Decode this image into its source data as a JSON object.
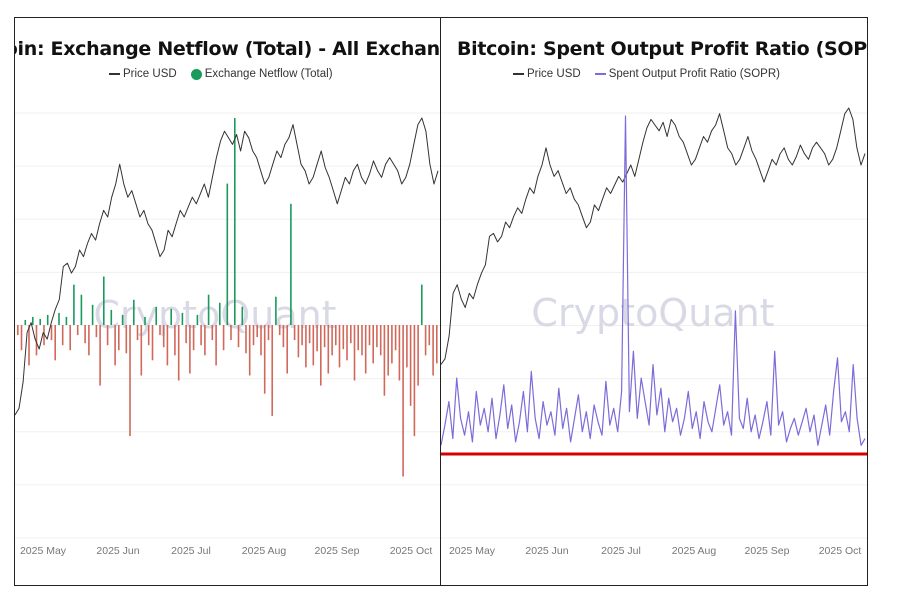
{
  "chart_data": [
    {
      "type": "line",
      "title": "Bitcoin: Exchange Netflow (Total) - All Exchanges",
      "title_visible": "tcoin: Exchange Netflow (Total) - All Exchang",
      "legend": [
        {
          "name": "Price USD",
          "style": "line",
          "color": "#333333"
        },
        {
          "name": "Exchange Netflow (Total)",
          "style": "dot",
          "color": "#1a9b5c"
        }
      ],
      "watermark": "CryptoQuant",
      "x_ticks": [
        "2025 May",
        "2025 Jun",
        "2025 Jul",
        "2025 Aug",
        "2025 Sep",
        "2025 Oct"
      ],
      "grid": true,
      "price_series_approx": [
        0.1,
        0.12,
        0.2,
        0.35,
        0.38,
        0.33,
        0.3,
        0.35,
        0.33,
        0.38,
        0.42,
        0.45,
        0.55,
        0.56,
        0.53,
        0.55,
        0.6,
        0.58,
        0.62,
        0.65,
        0.63,
        0.68,
        0.72,
        0.7,
        0.76,
        0.8,
        0.86,
        0.8,
        0.76,
        0.78,
        0.74,
        0.7,
        0.72,
        0.68,
        0.66,
        0.62,
        0.58,
        0.6,
        0.66,
        0.64,
        0.68,
        0.72,
        0.7,
        0.73,
        0.76,
        0.74,
        0.77,
        0.8,
        0.76,
        0.82,
        0.88,
        0.93,
        0.96,
        0.94,
        0.92,
        0.95,
        0.9,
        0.96,
        0.94,
        0.9,
        0.88,
        0.84,
        0.8,
        0.82,
        0.86,
        0.9,
        0.88,
        0.92,
        0.94,
        0.98,
        0.92,
        0.86,
        0.84,
        0.8,
        0.82,
        0.86,
        0.9,
        0.85,
        0.82,
        0.78,
        0.74,
        0.78,
        0.82,
        0.8,
        0.84,
        0.86,
        0.82,
        0.8,
        0.83,
        0.87,
        0.84,
        0.82,
        0.86,
        0.88,
        0.86,
        0.84,
        0.8,
        0.82,
        0.86,
        0.92,
        0.98,
        1.0,
        0.96,
        0.86,
        0.8,
        0.84
      ],
      "netflow_series_approx": [
        -10,
        -25,
        5,
        -40,
        8,
        -30,
        6,
        -20,
        10,
        -15,
        -35,
        12,
        -20,
        8,
        -25,
        40,
        -10,
        30,
        -18,
        -30,
        20,
        -12,
        -60,
        48,
        -20,
        15,
        -40,
        -25,
        10,
        -28,
        -110,
        25,
        -15,
        -50,
        8,
        -20,
        -35,
        18,
        -10,
        -22,
        -40,
        16,
        -30,
        -55,
        12,
        -18,
        -48,
        -25,
        10,
        -20,
        -30,
        30,
        -15,
        -40,
        22,
        -25,
        140,
        -15,
        205,
        -22,
        18,
        -28,
        -50,
        -20,
        -12,
        -30,
        -68,
        -15,
        -90,
        28,
        -10,
        -22,
        -48,
        120,
        -15,
        -32,
        -20,
        -42,
        -18,
        -40,
        -26,
        -60,
        -22,
        -48,
        -30,
        -20,
        -42,
        -24,
        -35,
        -18,
        -55,
        -25,
        -30,
        -48,
        -20,
        -38,
        -22,
        -30,
        -70,
        -50,
        -38,
        -25,
        -55,
        -150,
        -42,
        -80,
        -110,
        -60,
        40,
        -30,
        -20,
        -50,
        -38
      ]
    },
    {
      "type": "line",
      "title": "Bitcoin: Spent Output Profit Ratio (SOPR)",
      "legend": [
        {
          "name": "Price USD",
          "style": "line",
          "color": "#333333"
        },
        {
          "name": "Spent Output Profit Ratio (SOPR)",
          "style": "line",
          "color": "#7b6cd9"
        }
      ],
      "watermark": "CryptoQuant",
      "x_ticks": [
        "2025 May",
        "2025 Jun",
        "2025 Jul",
        "2025 Aug",
        "2025 Sep",
        "2025 Oct"
      ],
      "grid": true,
      "reference_line_color": "#d40000",
      "price_series_approx": [
        0.1,
        0.12,
        0.2,
        0.35,
        0.38,
        0.33,
        0.3,
        0.35,
        0.33,
        0.38,
        0.42,
        0.45,
        0.55,
        0.56,
        0.53,
        0.55,
        0.6,
        0.58,
        0.62,
        0.65,
        0.63,
        0.68,
        0.72,
        0.7,
        0.76,
        0.8,
        0.86,
        0.8,
        0.76,
        0.78,
        0.74,
        0.7,
        0.72,
        0.68,
        0.66,
        0.62,
        0.58,
        0.6,
        0.66,
        0.64,
        0.68,
        0.72,
        0.7,
        0.73,
        0.76,
        0.74,
        0.77,
        0.8,
        0.76,
        0.82,
        0.88,
        0.93,
        0.96,
        0.94,
        0.92,
        0.95,
        0.9,
        0.96,
        0.94,
        0.9,
        0.88,
        0.84,
        0.8,
        0.82,
        0.86,
        0.9,
        0.88,
        0.92,
        0.94,
        0.98,
        0.92,
        0.86,
        0.84,
        0.8,
        0.82,
        0.86,
        0.9,
        0.85,
        0.82,
        0.78,
        0.74,
        0.78,
        0.82,
        0.8,
        0.84,
        0.86,
        0.82,
        0.8,
        0.83,
        0.87,
        0.84,
        0.82,
        0.86,
        0.88,
        0.86,
        0.84,
        0.8,
        0.82,
        0.86,
        0.92,
        0.98,
        1.0,
        0.96,
        0.86,
        0.8,
        0.84
      ],
      "sopr_series_approx": [
        0.02,
        0.08,
        0.15,
        0.04,
        0.22,
        0.1,
        0.05,
        0.12,
        0.03,
        0.18,
        0.08,
        0.13,
        0.06,
        0.16,
        0.04,
        0.11,
        0.2,
        0.07,
        0.14,
        0.03,
        0.09,
        0.18,
        0.06,
        0.24,
        0.1,
        0.04,
        0.15,
        0.08,
        0.12,
        0.05,
        0.19,
        0.07,
        0.13,
        0.03,
        0.1,
        0.17,
        0.06,
        0.12,
        0.04,
        0.14,
        0.09,
        0.05,
        0.21,
        0.08,
        0.13,
        0.06,
        0.18,
        1.0,
        0.12,
        0.3,
        0.1,
        0.22,
        0.15,
        0.08,
        0.26,
        0.11,
        0.19,
        0.06,
        0.16,
        0.09,
        0.13,
        0.05,
        0.1,
        0.18,
        0.07,
        0.12,
        0.04,
        0.15,
        0.09,
        0.06,
        0.13,
        0.2,
        0.08,
        0.12,
        0.05,
        0.42,
        0.1,
        0.07,
        0.16,
        0.06,
        0.11,
        0.04,
        0.09,
        0.15,
        0.05,
        0.3,
        0.08,
        0.12,
        0.03,
        0.07,
        0.1,
        0.05,
        0.09,
        0.13,
        0.06,
        0.11,
        0.02,
        0.08,
        0.14,
        0.05,
        0.18,
        0.28,
        0.09,
        0.12,
        0.06,
        0.26,
        0.1,
        0.02,
        0.04
      ]
    }
  ]
}
